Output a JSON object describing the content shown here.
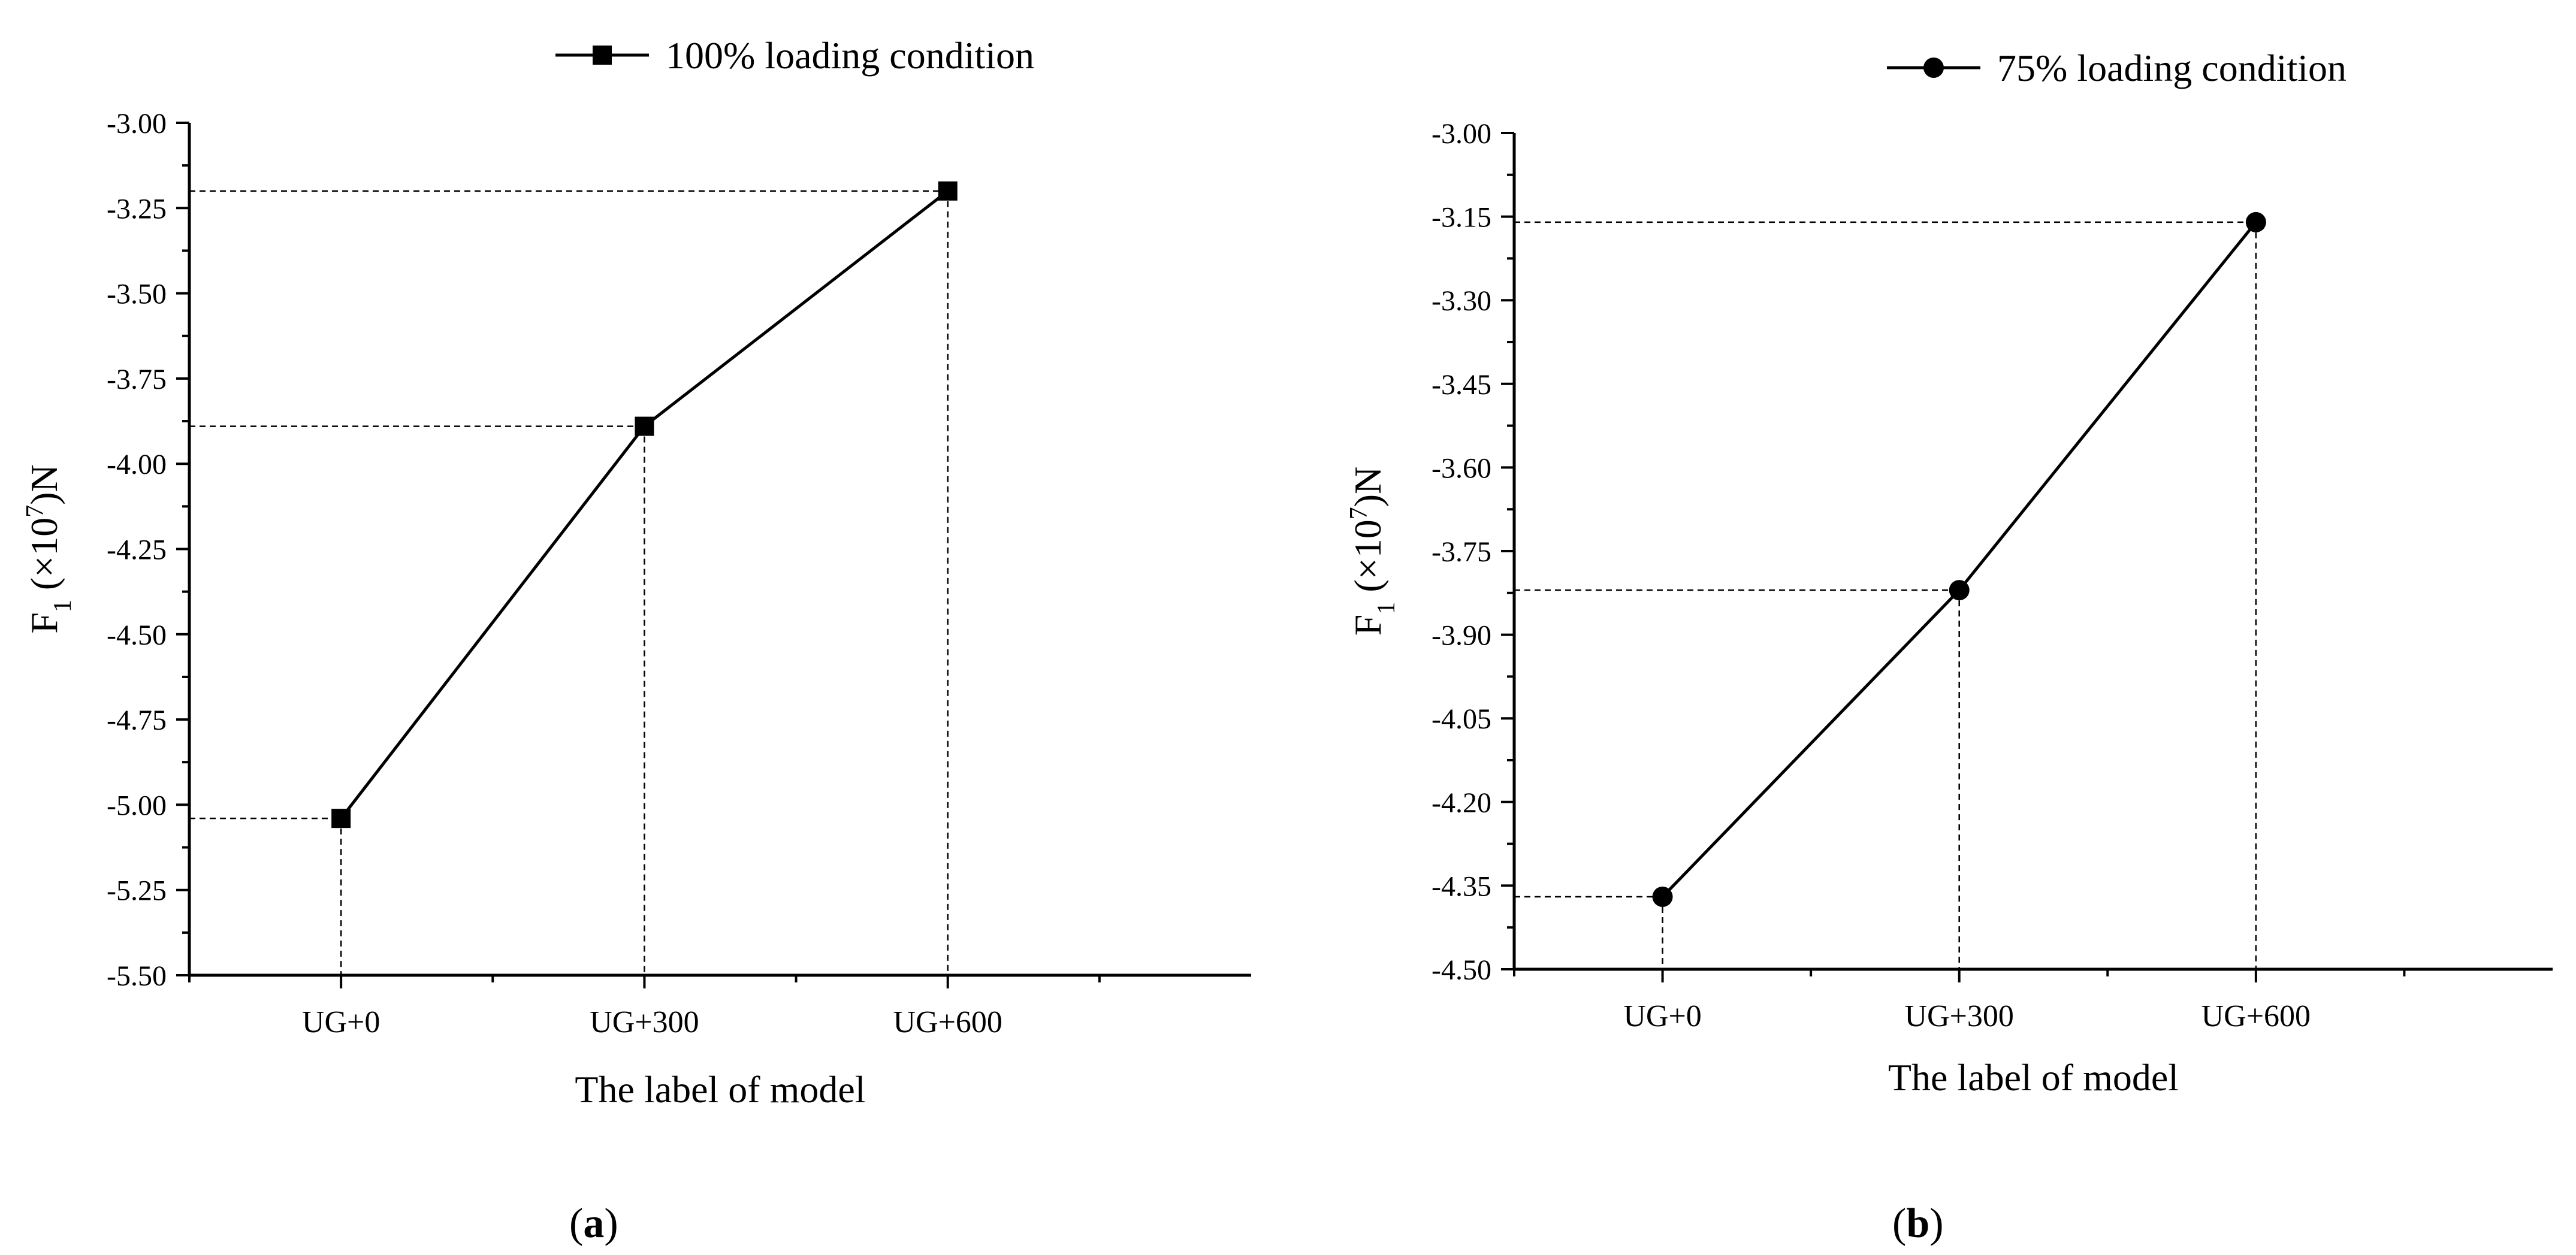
{
  "chart_data": [
    {
      "type": "line",
      "panel_label": "a",
      "legend_label": "100% loading condition",
      "marker": "square",
      "categories": [
        "UG+0",
        "UG+300",
        "UG+600"
      ],
      "series": [
        {
          "name": "100% loading condition",
          "values": [
            -5.04,
            -3.89,
            -3.2
          ]
        }
      ],
      "ylabel_main": "F",
      "ylabel_sub": "1",
      "ylabel_mid": " (×10",
      "ylabel_sup": "7",
      "ylabel_end": ")N",
      "xlabel": "The label of model",
      "ylim": [
        -5.5,
        -3.0
      ],
      "yticks": [
        -3.0,
        -3.25,
        -3.5,
        -3.75,
        -4.0,
        -4.25,
        -4.5,
        -4.75,
        -5.0,
        -5.25,
        -5.5
      ],
      "ytick_labels": [
        "-3.00",
        "-3.25",
        "-3.50",
        "-3.75",
        "-4.00",
        "-4.25",
        "-4.50",
        "-4.75",
        "-5.00",
        "-5.25",
        "-5.50"
      ],
      "legend_position": "top-center",
      "dashed_guides": true
    },
    {
      "type": "line",
      "panel_label": "b",
      "legend_label": "75% loading condition",
      "marker": "circle",
      "categories": [
        "UG+0",
        "UG+300",
        "UG+600"
      ],
      "series": [
        {
          "name": "75% loading condition",
          "values": [
            -4.37,
            -3.82,
            -3.16
          ]
        }
      ],
      "ylabel_main": "F",
      "ylabel_sub": "1",
      "ylabel_mid": " (×10",
      "ylabel_sup": "7",
      "ylabel_end": ")N",
      "xlabel": "The label of model",
      "ylim": [
        -4.5,
        -3.0
      ],
      "yticks": [
        -3.0,
        -3.15,
        -3.3,
        -3.45,
        -3.6,
        -3.75,
        -3.9,
        -4.05,
        -4.2,
        -4.35,
        -4.5
      ],
      "ytick_labels": [
        "-3.00",
        "-3.15",
        "-3.30",
        "-3.45",
        "-3.60",
        "-3.75",
        "-3.90",
        "-4.05",
        "-4.20",
        "-4.35",
        "-4.50"
      ],
      "legend_position": "top-center",
      "dashed_guides": true
    }
  ]
}
